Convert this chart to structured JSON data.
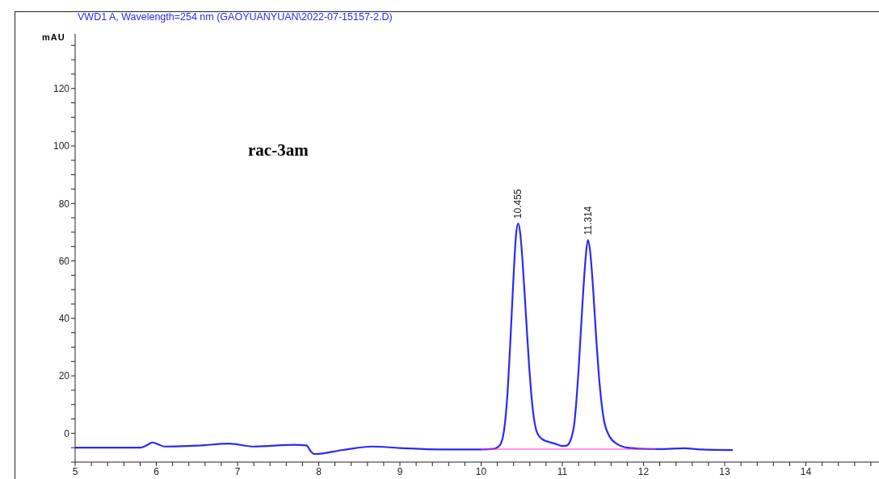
{
  "chart_data": {
    "type": "line",
    "title": "VWD1 A, Wavelength=254 nm (GAOYUANYUAN\\2022-07-15157-2.D)",
    "ylabel": "mAU",
    "xlim": [
      5,
      14.9
    ],
    "xticks": [
      5,
      {
        "value": 5.2,
        "label": null
      },
      {
        "value": 5.4,
        "label": null
      },
      {
        "value": 5.6,
        "label": null
      },
      {
        "value": 5.8,
        "label": null
      },
      6,
      {
        "value": 6.2,
        "label": null
      },
      {
        "value": 6.4,
        "label": null
      },
      {
        "value": 6.6,
        "label": null
      },
      {
        "value": 6.8,
        "label": null
      },
      7,
      {
        "value": 7.2,
        "label": null
      },
      {
        "value": 7.4,
        "label": null
      },
      {
        "value": 7.6,
        "label": null
      },
      {
        "value": 7.8,
        "label": null
      },
      8,
      {
        "value": 8.2,
        "label": null
      },
      {
        "value": 8.4,
        "label": null
      },
      {
        "value": 8.6,
        "label": null
      },
      {
        "value": 8.8,
        "label": null
      },
      9,
      {
        "value": 9.2,
        "label": null
      },
      {
        "value": 9.4,
        "label": null
      },
      {
        "value": 9.6,
        "label": null
      },
      {
        "value": 9.8,
        "label": null
      },
      10,
      {
        "value": 10.2,
        "label": null
      },
      {
        "value": 10.4,
        "label": null
      },
      {
        "value": 10.6,
        "label": null
      },
      {
        "value": 10.8,
        "label": null
      },
      11,
      {
        "value": 11.2,
        "label": null
      },
      {
        "value": 11.4,
        "label": null
      },
      {
        "value": 11.6,
        "label": null
      },
      {
        "value": 11.8,
        "label": null
      },
      12,
      {
        "value": 12.2,
        "label": null
      },
      {
        "value": 12.4,
        "label": null
      },
      {
        "value": 12.6,
        "label": null
      },
      {
        "value": 12.8,
        "label": null
      },
      13,
      {
        "value": 13.2,
        "label": null
      },
      {
        "value": 13.4,
        "label": null
      },
      {
        "value": 13.6,
        "label": null
      },
      {
        "value": 13.8,
        "label": null
      },
      14,
      {
        "value": 14.2,
        "label": null
      },
      {
        "value": 14.4,
        "label": null
      },
      {
        "value": 14.6,
        "label": null
      },
      {
        "value": 14.8,
        "label": null
      }
    ],
    "ylim": [
      -10,
      139
    ],
    "yticks": [
      {
        "value": -10,
        "label": null
      },
      {
        "value": -5,
        "label": null
      },
      0,
      {
        "value": 5,
        "label": null
      },
      {
        "value": 10,
        "label": null
      },
      {
        "value": 15,
        "label": null
      },
      20,
      {
        "value": 25,
        "label": null
      },
      {
        "value": 30,
        "label": null
      },
      {
        "value": 35,
        "label": null
      },
      40,
      {
        "value": 45,
        "label": null
      },
      {
        "value": 50,
        "label": null
      },
      {
        "value": 55,
        "label": null
      },
      60,
      {
        "value": 65,
        "label": null
      },
      {
        "value": 70,
        "label": null
      },
      {
        "value": 75,
        "label": null
      },
      80,
      {
        "value": 85,
        "label": null
      },
      {
        "value": 90,
        "label": null
      },
      {
        "value": 95,
        "label": null
      },
      100,
      {
        "value": 105,
        "label": null
      },
      {
        "value": 110,
        "label": null
      },
      {
        "value": 115,
        "label": null
      },
      120,
      {
        "value": 125,
        "label": null
      },
      {
        "value": 130,
        "label": null
      },
      {
        "value": 135,
        "label": null
      }
    ],
    "marker": "none",
    "line_style": "solid",
    "series": [
      {
        "color": "#2a2af5",
        "x": [
          5,
          5.8,
          5.88,
          5.95,
          6.02,
          6.1,
          6.3,
          6.5,
          6.9,
          7.2,
          7.7,
          7.85,
          7.9,
          7.95,
          8.3,
          8.65,
          9.0,
          9.5,
          10.0,
          10.15,
          10.22,
          10.27,
          10.32,
          10.36,
          10.4,
          10.43,
          10.455,
          10.48,
          10.51,
          10.55,
          10.59,
          10.63,
          10.68,
          10.75,
          10.9,
          11.0,
          11.05,
          11.1,
          11.15,
          11.2,
          11.25,
          11.29,
          11.314,
          11.34,
          11.38,
          11.42,
          11.46,
          11.51,
          11.58,
          11.68,
          11.8,
          12.0,
          12.2,
          12.5,
          12.7,
          13.1
        ],
        "values": [
          -5.0,
          -5.0,
          -4.2,
          -3.2,
          -3.8,
          -4.6,
          -4.5,
          -4.3,
          -3.6,
          -4.6,
          -4.0,
          -4.2,
          -6.2,
          -7.2,
          -5.8,
          -4.6,
          -5.1,
          -5.6,
          -5.6,
          -5.4,
          -4.5,
          -1,
          12,
          32,
          55,
          69,
          73,
          70,
          60,
          42,
          24,
          10,
          1,
          -2,
          -3.5,
          -4.4,
          -4.3,
          -2.5,
          4,
          22,
          46,
          62,
          67.3,
          64,
          50,
          32,
          17,
          5,
          -1,
          -3.8,
          -5,
          -5.4,
          -5.5,
          -5.2,
          -5.6,
          -5.8
        ]
      },
      {
        "color": "#ff33cc",
        "x": [
          10,
          12.15
        ],
        "values": [
          -5.5,
          -5.5
        ]
      }
    ],
    "annotations": [
      {
        "text": "10.455",
        "x": 10.455,
        "y": 73
      },
      {
        "text": "11.314",
        "x": 11.314,
        "y": 67.3
      },
      "rac-3am"
    ]
  }
}
